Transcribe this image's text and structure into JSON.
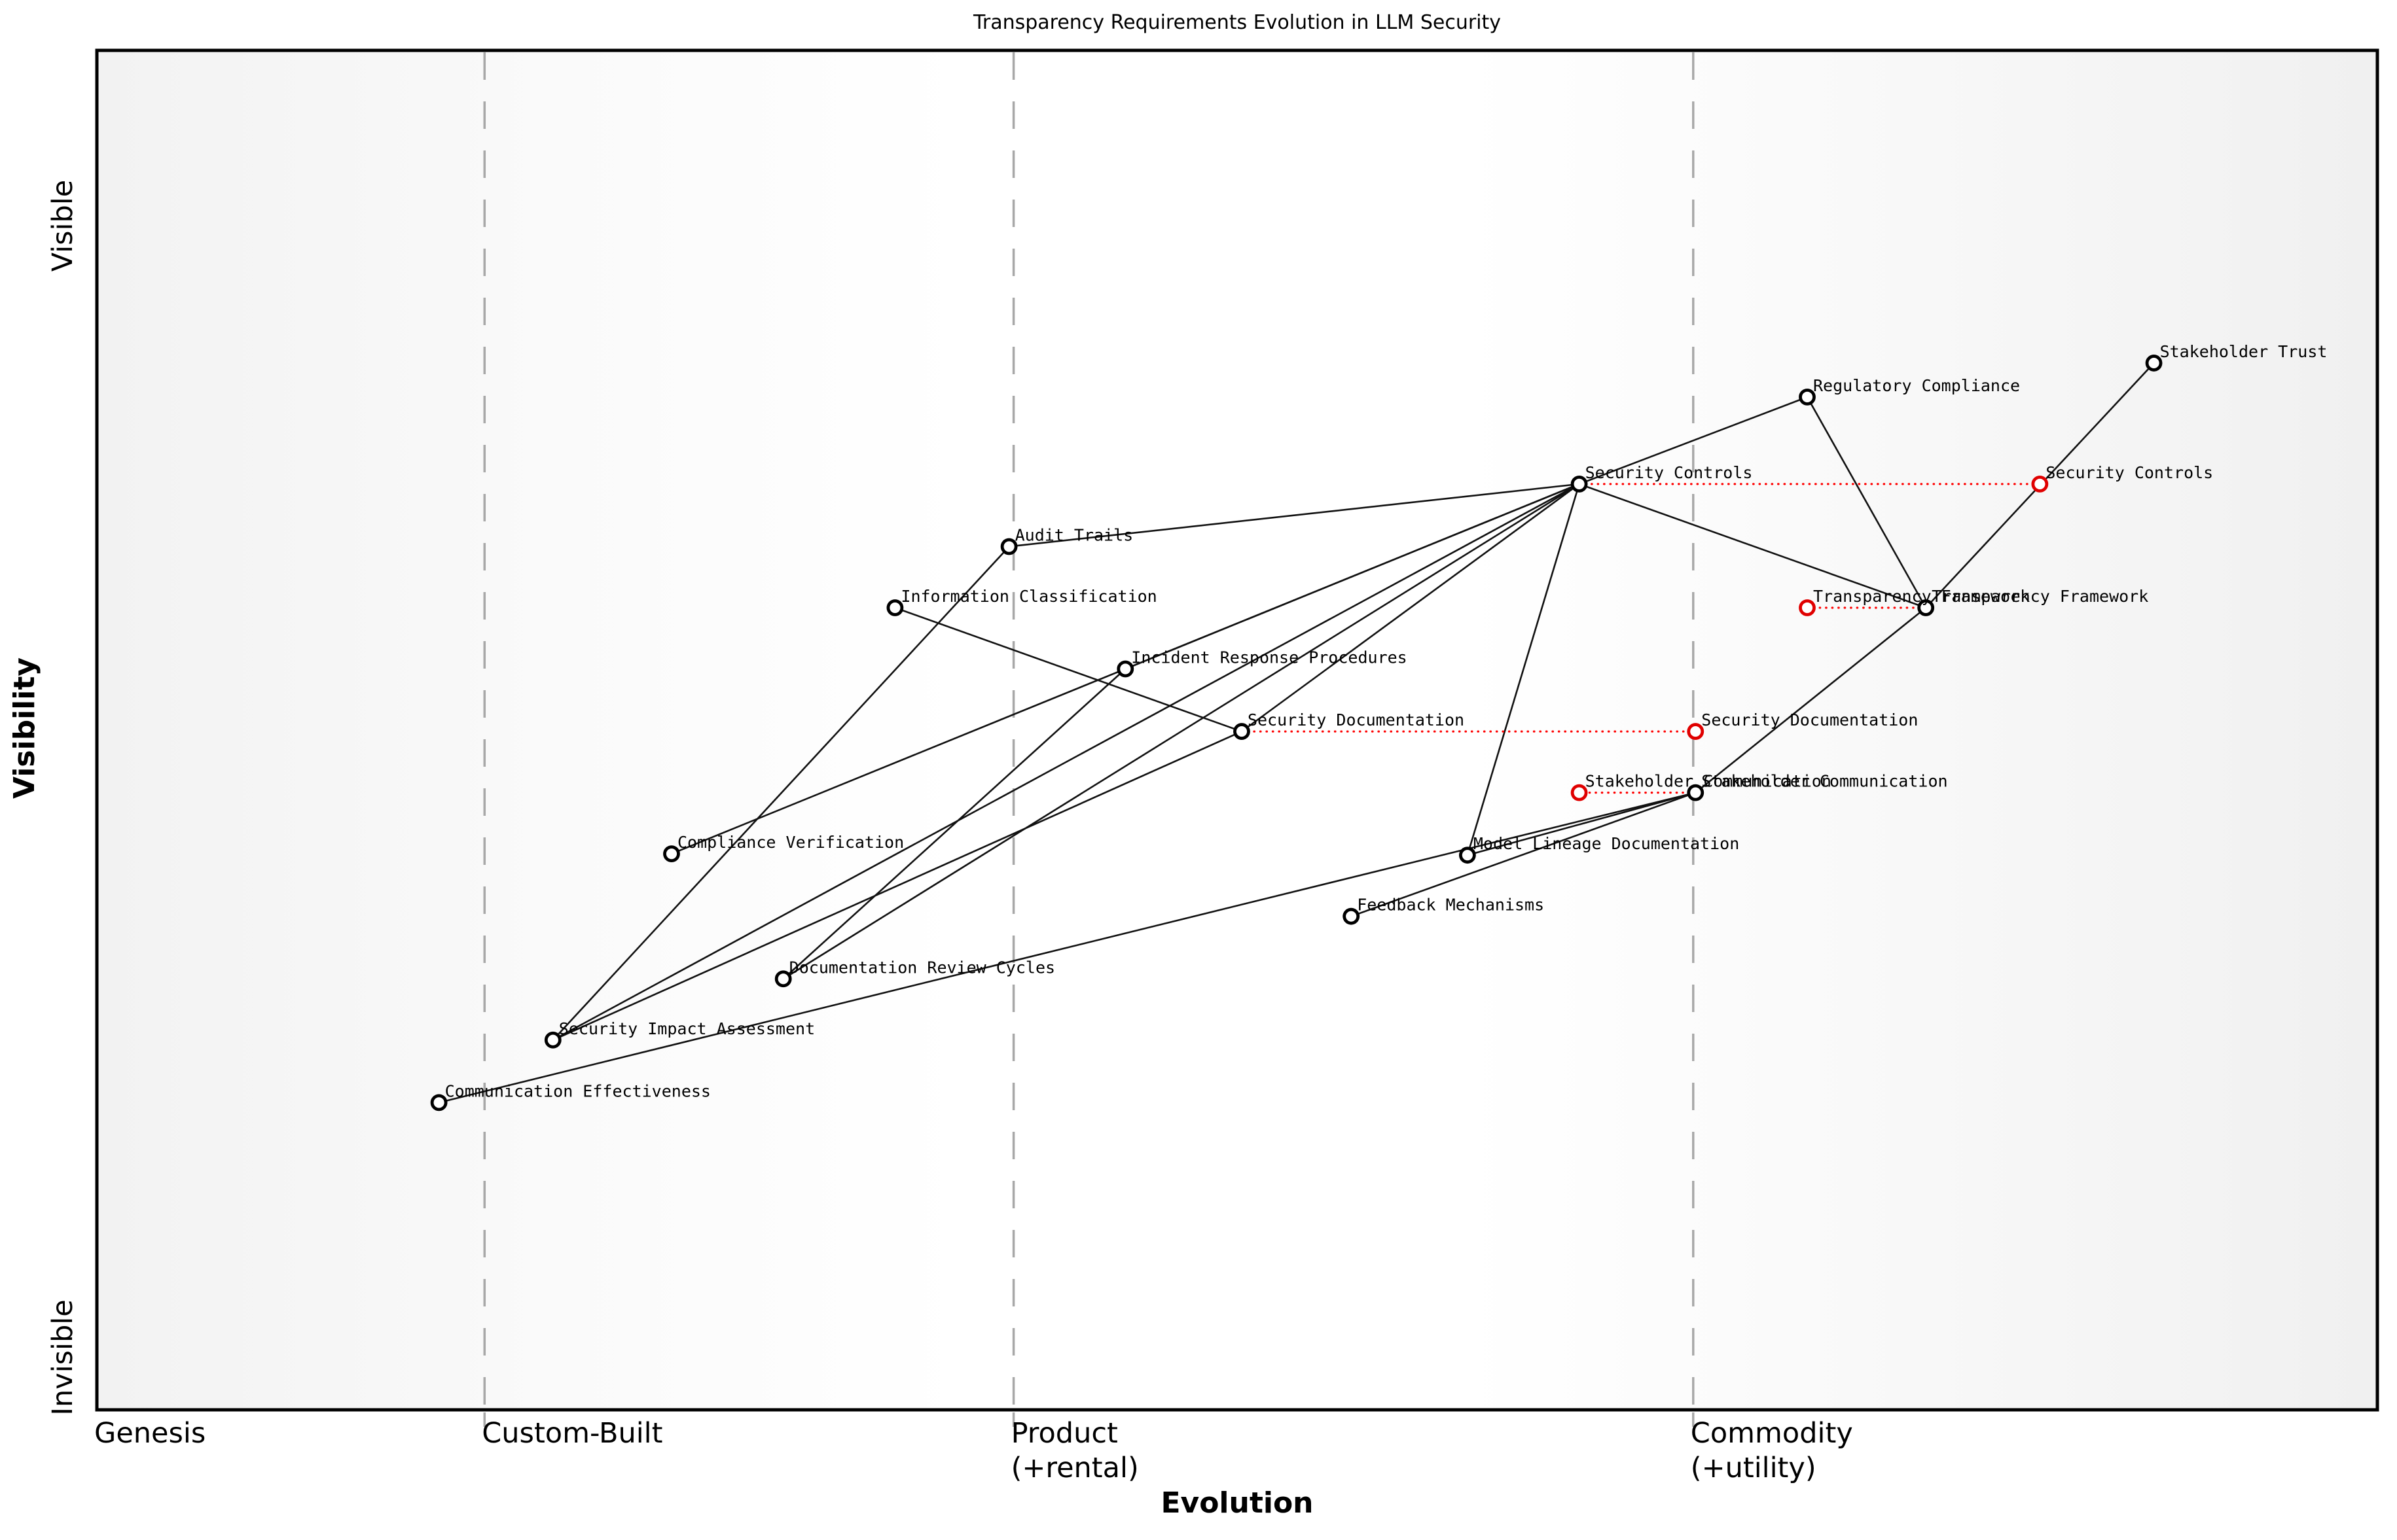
{
  "title": "Transparency Requirements Evolution in LLM Security",
  "chart_data": {
    "type": "scatter",
    "subtype": "wardley-map",
    "title": "Transparency Requirements Evolution in LLM Security",
    "xlabel": "Evolution",
    "ylabel": "Visibility",
    "y_tick_labels": [
      "Visible",
      "Invisible"
    ],
    "grid": "vertical-stage-boundaries-dashed",
    "axis": {
      "evolution_range": [
        0,
        1
      ],
      "visibility_range": [
        0,
        1
      ]
    },
    "stages": [
      {
        "label": "Genesis",
        "sublabel": "",
        "ev": 0.0,
        "boundary_line": false
      },
      {
        "label": "Custom-Built",
        "sublabel": "",
        "ev": 0.17,
        "boundary_line": true
      },
      {
        "label": "Product",
        "sublabel": "(+rental)",
        "ev": 0.402,
        "boundary_line": true
      },
      {
        "label": "Commodity",
        "sublabel": "(+utility)",
        "ev": 0.7,
        "boundary_line": true
      }
    ],
    "nodes": [
      {
        "id": "stakeholder-trust",
        "label": "Stakeholder Trust",
        "ev": 0.902,
        "vis": 0.77,
        "color": "black"
      },
      {
        "id": "regulatory-compliance",
        "label": "Regulatory Compliance",
        "ev": 0.75,
        "vis": 0.745,
        "color": "black"
      },
      {
        "id": "security-controls",
        "label": "Security Controls",
        "ev": 0.65,
        "vis": 0.681,
        "color": "black"
      },
      {
        "id": "security-controls-evolved",
        "label": "Security Controls",
        "ev": 0.852,
        "vis": 0.681,
        "color": "red"
      },
      {
        "id": "audit-trails",
        "label": "Audit Trails",
        "ev": 0.4,
        "vis": 0.635,
        "color": "black"
      },
      {
        "id": "information-classification",
        "label": "Information Classification",
        "ev": 0.35,
        "vis": 0.59,
        "color": "black"
      },
      {
        "id": "transparency-framework",
        "label": "Transparency Framework",
        "ev": 0.802,
        "vis": 0.59,
        "color": "black"
      },
      {
        "id": "transparency-framework-evolved",
        "label": "Transparency Framework",
        "ev": 0.75,
        "vis": 0.59,
        "color": "red"
      },
      {
        "id": "incident-response-procedures",
        "label": "Incident Response Procedures",
        "ev": 0.451,
        "vis": 0.545,
        "color": "black"
      },
      {
        "id": "security-documentation",
        "label": "Security Documentation",
        "ev": 0.502,
        "vis": 0.499,
        "color": "black"
      },
      {
        "id": "security-documentation-evolved",
        "label": "Security Documentation",
        "ev": 0.701,
        "vis": 0.499,
        "color": "red"
      },
      {
        "id": "stakeholder-communication",
        "label": "Stakeholder Communication",
        "ev": 0.701,
        "vis": 0.454,
        "color": "black"
      },
      {
        "id": "stakeholder-communication-evolved",
        "label": "Stakeholder Communication",
        "ev": 0.65,
        "vis": 0.454,
        "color": "red"
      },
      {
        "id": "model-lineage-documentation",
        "label": "Model Lineage Documentation",
        "ev": 0.601,
        "vis": 0.408,
        "color": "black"
      },
      {
        "id": "compliance-verification",
        "label": "Compliance Verification",
        "ev": 0.252,
        "vis": 0.409,
        "color": "black"
      },
      {
        "id": "feedback-mechanisms",
        "label": "Feedback Mechanisms",
        "ev": 0.55,
        "vis": 0.363,
        "color": "black"
      },
      {
        "id": "documentation-review-cycles",
        "label": "Documentation Review Cycles",
        "ev": 0.301,
        "vis": 0.317,
        "color": "black"
      },
      {
        "id": "security-impact-assessment",
        "label": "Security Impact Assessment",
        "ev": 0.2,
        "vis": 0.272,
        "color": "black"
      },
      {
        "id": "communication-effectiveness",
        "label": "Communication Effectiveness",
        "ev": 0.15,
        "vis": 0.226,
        "color": "black"
      }
    ],
    "edges": [
      [
        "security-controls",
        "audit-trails"
      ],
      [
        "security-controls",
        "incident-response-procedures"
      ],
      [
        "security-controls",
        "compliance-verification"
      ],
      [
        "security-controls",
        "security-documentation"
      ],
      [
        "security-controls",
        "documentation-review-cycles"
      ],
      [
        "security-controls",
        "security-impact-assessment"
      ],
      [
        "security-controls",
        "model-lineage-documentation"
      ],
      [
        "security-controls",
        "regulatory-compliance"
      ],
      [
        "security-controls",
        "transparency-framework"
      ],
      [
        "stakeholder-trust",
        "transparency-framework"
      ],
      [
        "regulatory-compliance",
        "transparency-framework"
      ],
      [
        "transparency-framework",
        "stakeholder-communication"
      ],
      [
        "stakeholder-communication",
        "model-lineage-documentation"
      ],
      [
        "stakeholder-communication",
        "feedback-mechanisms"
      ],
      [
        "stakeholder-communication",
        "communication-effectiveness"
      ],
      [
        "information-classification",
        "security-documentation"
      ],
      [
        "security-impact-assessment",
        "audit-trails"
      ],
      [
        "security-impact-assessment",
        "security-documentation"
      ],
      [
        "documentation-review-cycles",
        "incident-response-procedures"
      ]
    ],
    "movements": [
      [
        "security-controls",
        "security-controls-evolved"
      ],
      [
        "security-documentation",
        "security-documentation-evolved"
      ],
      [
        "transparency-framework",
        "transparency-framework-evolved"
      ],
      [
        "stakeholder-communication",
        "stakeholder-communication-evolved"
      ]
    ],
    "colors": {
      "node_stroke": "#000000",
      "node_fill": "#ffffff",
      "evolved_node_stroke": "#e00000",
      "movement_line": "#ff0000",
      "edge_line": "#111111",
      "stage_boundary_line": "#a8a8a8",
      "plot_bg_edge": "#f1f1f1",
      "plot_bg_mid": "#ffffff"
    }
  }
}
